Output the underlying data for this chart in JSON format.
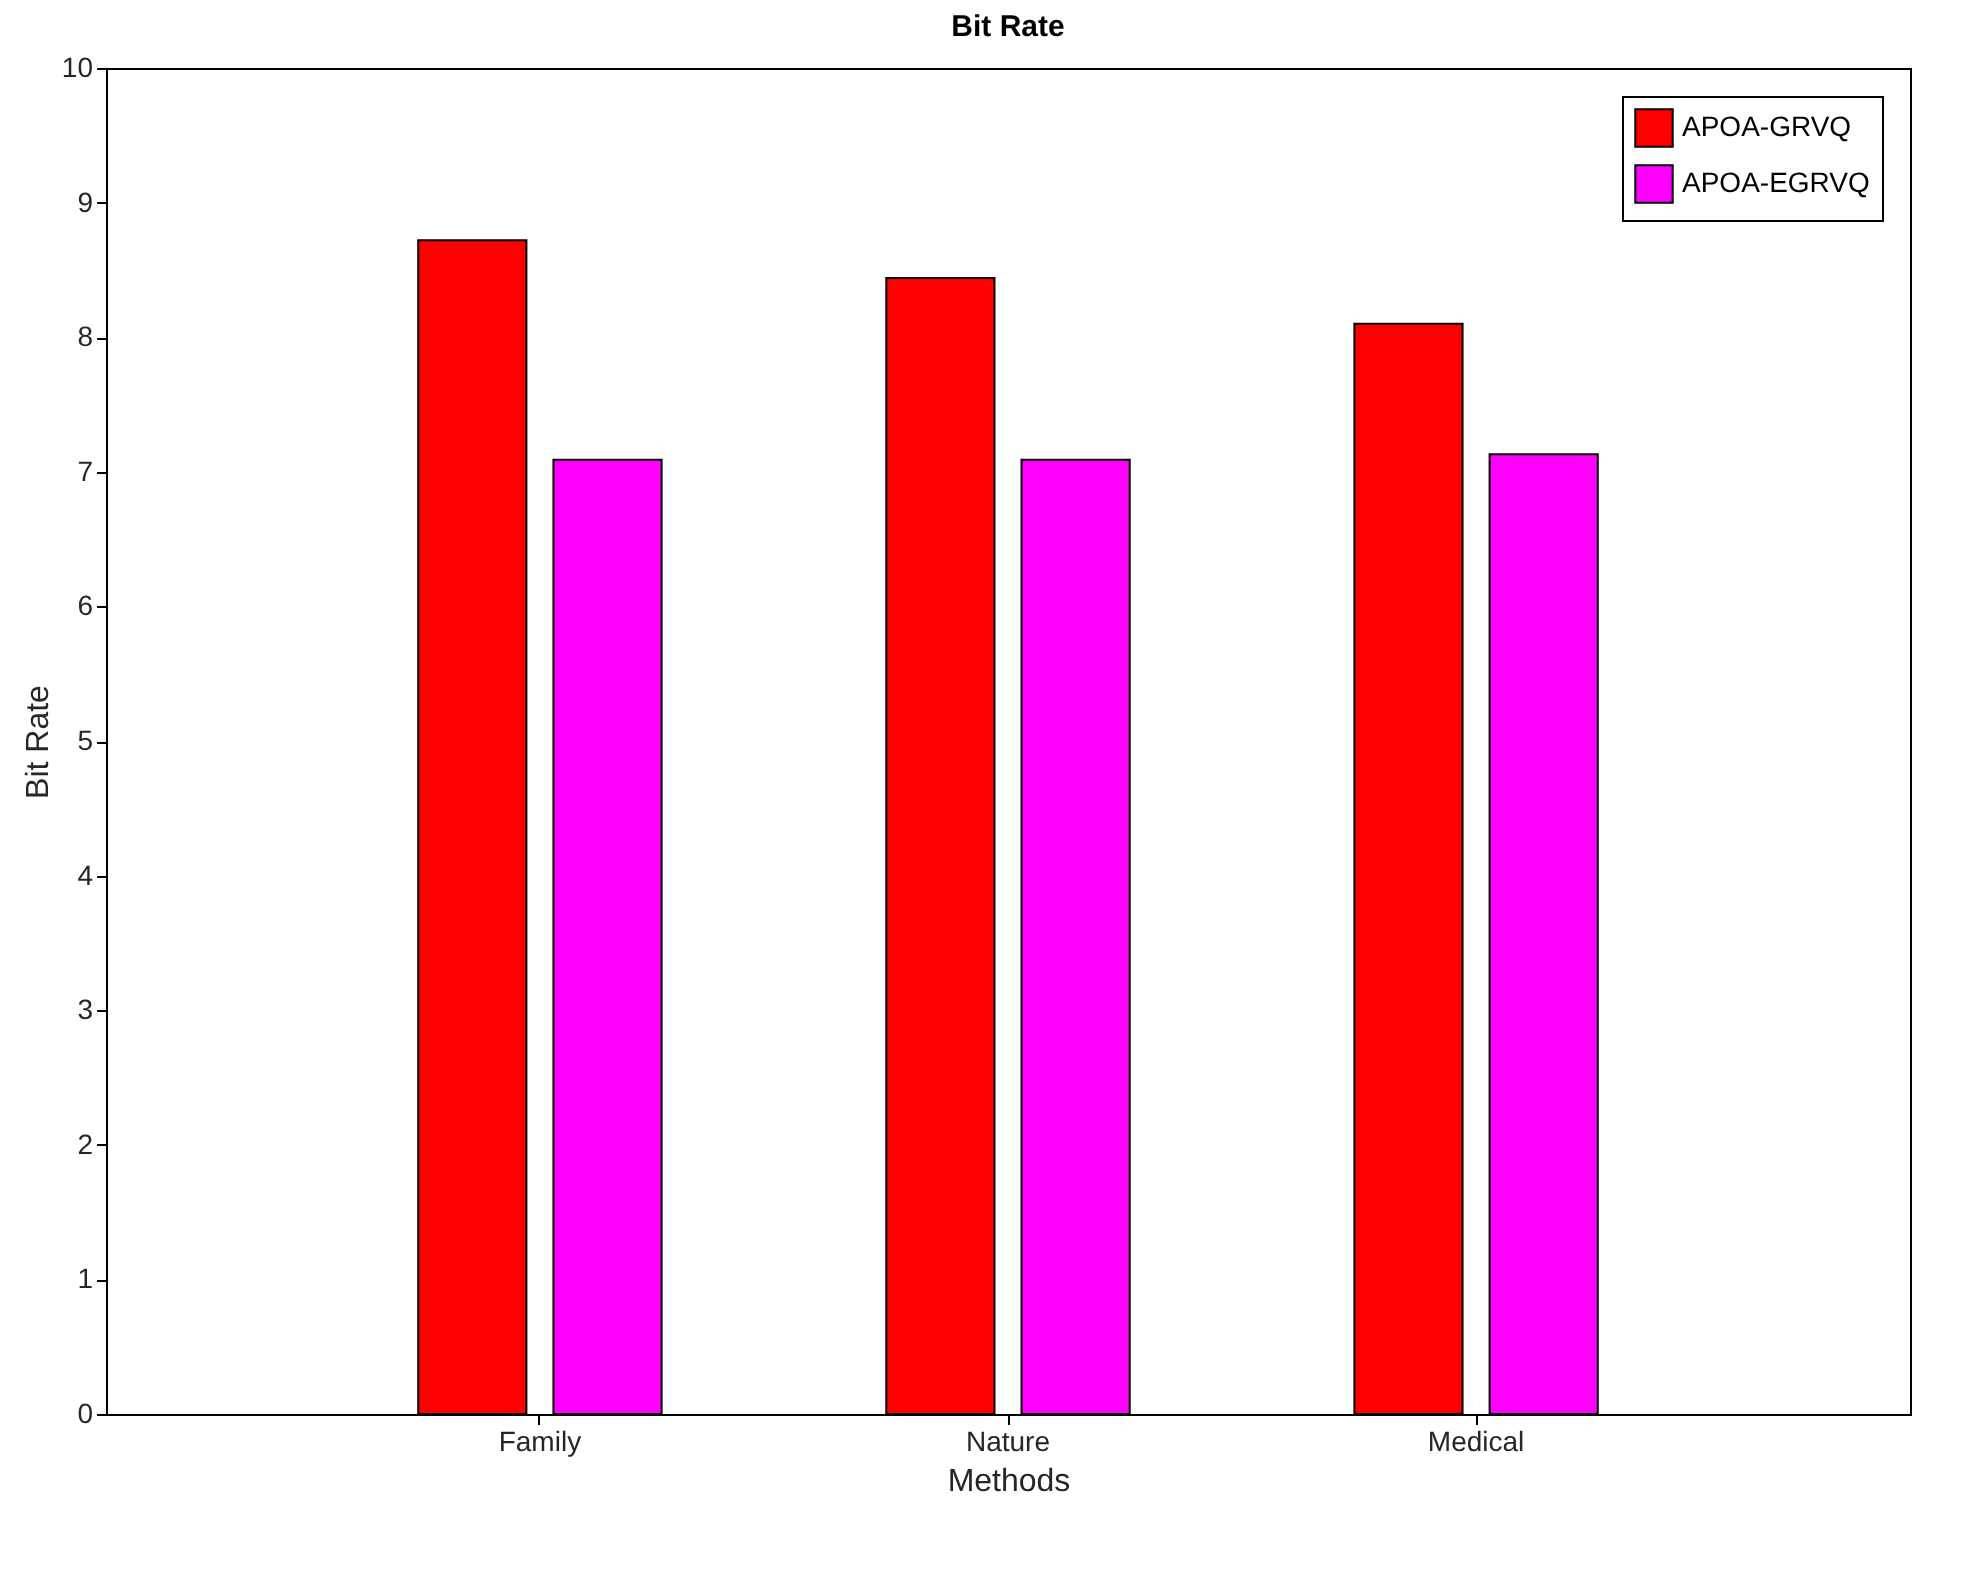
{
  "chart_data": {
    "type": "bar",
    "title": "Bit Rate",
    "xlabel": "Methods",
    "ylabel": "Bit Rate",
    "categories": [
      "Family",
      "Nature",
      "Medical"
    ],
    "series": [
      {
        "name": "APOA-GRVQ",
        "color": "#ff0000",
        "values": [
          8.72,
          8.44,
          8.1
        ]
      },
      {
        "name": "APOA-EGRVQ",
        "color": "#ff00ff",
        "values": [
          7.09,
          7.09,
          7.13
        ]
      }
    ],
    "ylim": [
      0,
      10
    ],
    "yticks": [
      0,
      1,
      2,
      3,
      4,
      5,
      6,
      7,
      8,
      9,
      10
    ],
    "grid": false,
    "legend": "top right"
  }
}
